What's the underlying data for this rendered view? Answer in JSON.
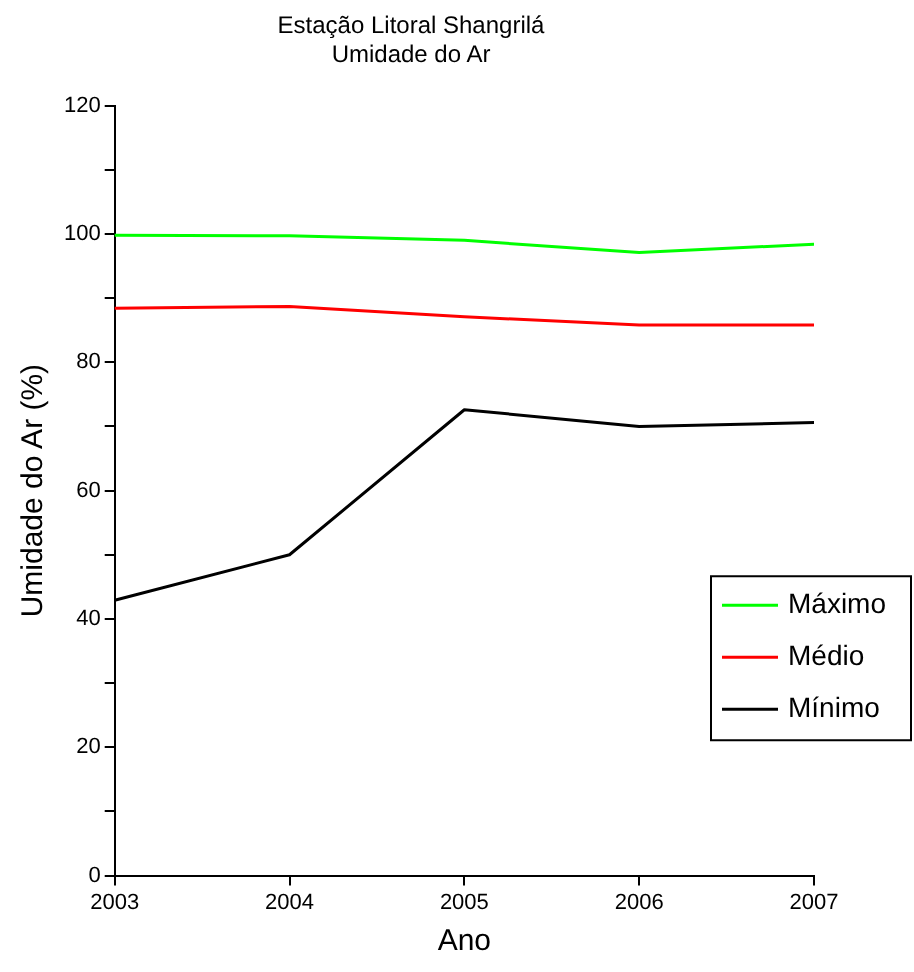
{
  "chart_data": {
    "type": "line",
    "title": "Estação Litoral Shangrilá",
    "subtitle": "Umidade do Ar",
    "xlabel": "Ano",
    "ylabel": "Umidade do Ar (%)",
    "x": [
      2003,
      2004,
      2005,
      2006,
      2007
    ],
    "series": [
      {
        "name": "Máximo",
        "color": "#00ff00",
        "values": [
          99.8,
          99.7,
          99,
          97.1,
          98.4
        ]
      },
      {
        "name": "Médio",
        "color": "#ff0000",
        "values": [
          88.4,
          88.7,
          87.1,
          85.8,
          85.8
        ]
      },
      {
        "name": "Mínimo",
        "color": "#000000",
        "values": [
          42.9,
          50,
          72.6,
          70,
          70.6
        ]
      }
    ],
    "xlim": [
      2003,
      2007
    ],
    "xticks": [
      2003,
      2004,
      2005,
      2006,
      2007
    ],
    "ylim": [
      0,
      120
    ],
    "yticks": [
      0,
      {
        "value": 10,
        "label": null
      },
      20,
      {
        "value": 30,
        "label": null
      },
      40,
      {
        "value": 50,
        "label": null
      },
      60,
      {
        "value": 70,
        "label": null
      },
      80,
      {
        "value": 90,
        "label": null
      },
      100,
      {
        "value": 110,
        "label": null
      },
      120
    ],
    "grid": false,
    "legend": "right",
    "marker": "none",
    "line_style": "solid"
  }
}
